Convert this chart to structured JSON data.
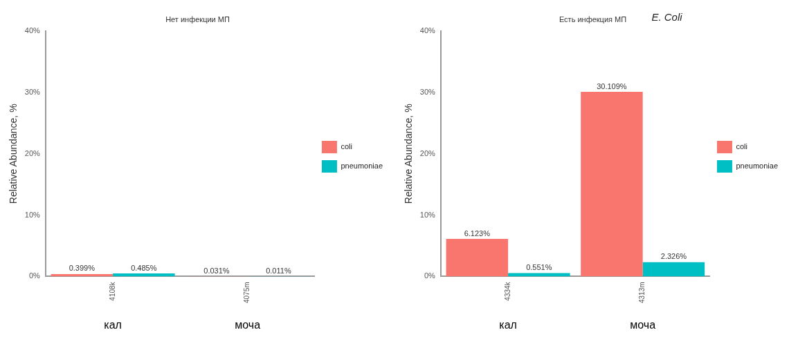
{
  "chart_data": [
    {
      "type": "bar",
      "title": "Нет инфекции МП",
      "ylabel": "Relative Abundance, %",
      "categories": [
        "4108k",
        "4075m"
      ],
      "annotations": [
        "кал",
        "моча"
      ],
      "series": [
        {
          "name": "coli",
          "color": "#f8766d",
          "values": [
            0.399,
            0.031
          ],
          "value_labels": [
            "0.399%",
            "0.031%"
          ]
        },
        {
          "name": "pneumoniae",
          "color": "#00bfc4",
          "values": [
            0.485,
            0.011
          ],
          "value_labels": [
            "0.485%",
            "0.011%"
          ]
        }
      ],
      "ylim": [
        0,
        40
      ],
      "yticks": [
        {
          "value": 0,
          "label": "0%"
        },
        {
          "value": 10,
          "label": "10%"
        },
        {
          "value": 20,
          "label": "20%"
        },
        {
          "value": 30,
          "label": "30%"
        },
        {
          "value": 40,
          "label": "40%"
        }
      ],
      "grid": false,
      "legend": "right"
    },
    {
      "type": "bar",
      "title": "Есть инфекция МП",
      "subtitle": "E. Coli",
      "ylabel": "Relative Abundance, %",
      "categories": [
        "4334k",
        "4313m"
      ],
      "annotations": [
        "кал",
        "моча"
      ],
      "series": [
        {
          "name": "coli",
          "color": "#f8766d",
          "values": [
            6.123,
            30.109
          ],
          "value_labels": [
            "6.123%",
            "30.109%"
          ]
        },
        {
          "name": "pneumoniae",
          "color": "#00bfc4",
          "values": [
            0.551,
            2.326
          ],
          "value_labels": [
            "0.551%",
            "2.326%"
          ]
        }
      ],
      "ylim": [
        0,
        40
      ],
      "yticks": [
        {
          "value": 0,
          "label": "0%"
        },
        {
          "value": 10,
          "label": "10%"
        },
        {
          "value": 20,
          "label": "20%"
        },
        {
          "value": 30,
          "label": "30%"
        },
        {
          "value": 40,
          "label": "40%"
        }
      ],
      "grid": false,
      "legend": "right"
    }
  ]
}
